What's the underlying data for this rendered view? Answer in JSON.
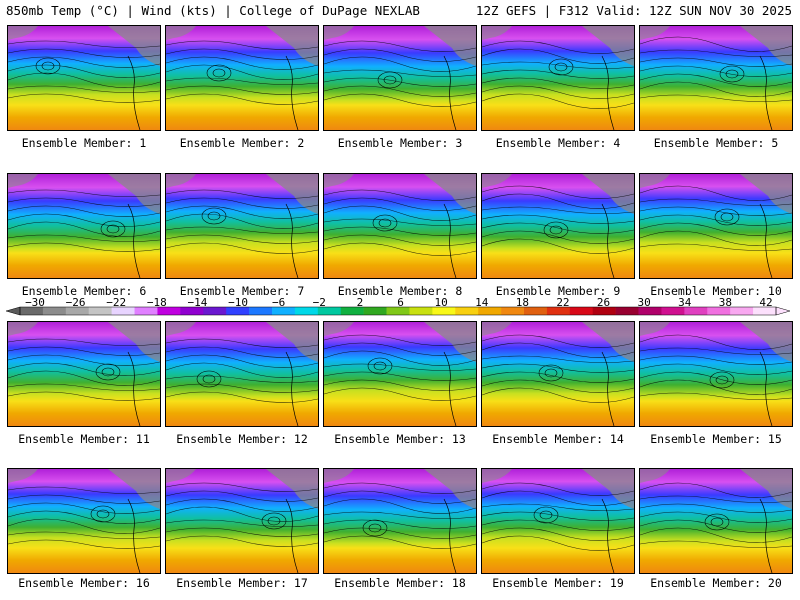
{
  "header": {
    "left": "850mb Temp (°C) | Wind (kts) | College of DuPage NEXLAB",
    "right": "12Z GEFS | F312 Valid: 12Z SUN NOV 30 2025"
  },
  "colorbar": {
    "ticks": [
      "−30",
      "−26",
      "−22",
      "−18",
      "−14",
      "−10",
      "−6",
      "−2",
      "2",
      "6",
      "10",
      "14",
      "18",
      "22",
      "26",
      "30",
      "34",
      "38",
      "42"
    ],
    "colors": [
      "#6a6a6a",
      "#8c8c8c",
      "#a8a8a8",
      "#c4c4c4",
      "#e8d4ff",
      "#e080ff",
      "#c000e0",
      "#9000d0",
      "#6a18d0",
      "#3040ff",
      "#1c78ff",
      "#10b0ff",
      "#00d8e8",
      "#00c8a0",
      "#10b040",
      "#30a820",
      "#80c818",
      "#c8e010",
      "#f8f818",
      "#f8d010",
      "#f0a800",
      "#f08810",
      "#e06010",
      "#e03010",
      "#d80818",
      "#b00010",
      "#980030",
      "#b0006a",
      "#d01090",
      "#e040c0",
      "#f070e0",
      "#f8a8f0",
      "#fce0fc"
    ]
  },
  "members": [
    {
      "label": "Ensemble Member: 1"
    },
    {
      "label": "Ensemble Member: 2"
    },
    {
      "label": "Ensemble Member: 3"
    },
    {
      "label": "Ensemble Member: 4"
    },
    {
      "label": "Ensemble Member: 5"
    },
    {
      "label": "Ensemble Member: 6"
    },
    {
      "label": "Ensemble Member: 7"
    },
    {
      "label": "Ensemble Member: 8"
    },
    {
      "label": "Ensemble Member: 9"
    },
    {
      "label": "Ensemble Member: 10"
    },
    {
      "label": "Ensemble Member: 11"
    },
    {
      "label": "Ensemble Member: 12"
    },
    {
      "label": "Ensemble Member: 13"
    },
    {
      "label": "Ensemble Member: 14"
    },
    {
      "label": "Ensemble Member: 15"
    },
    {
      "label": "Ensemble Member: 16"
    },
    {
      "label": "Ensemble Member: 17"
    },
    {
      "label": "Ensemble Member: 18"
    },
    {
      "label": "Ensemble Member: 19"
    },
    {
      "label": "Ensemble Member: 20"
    }
  ]
}
